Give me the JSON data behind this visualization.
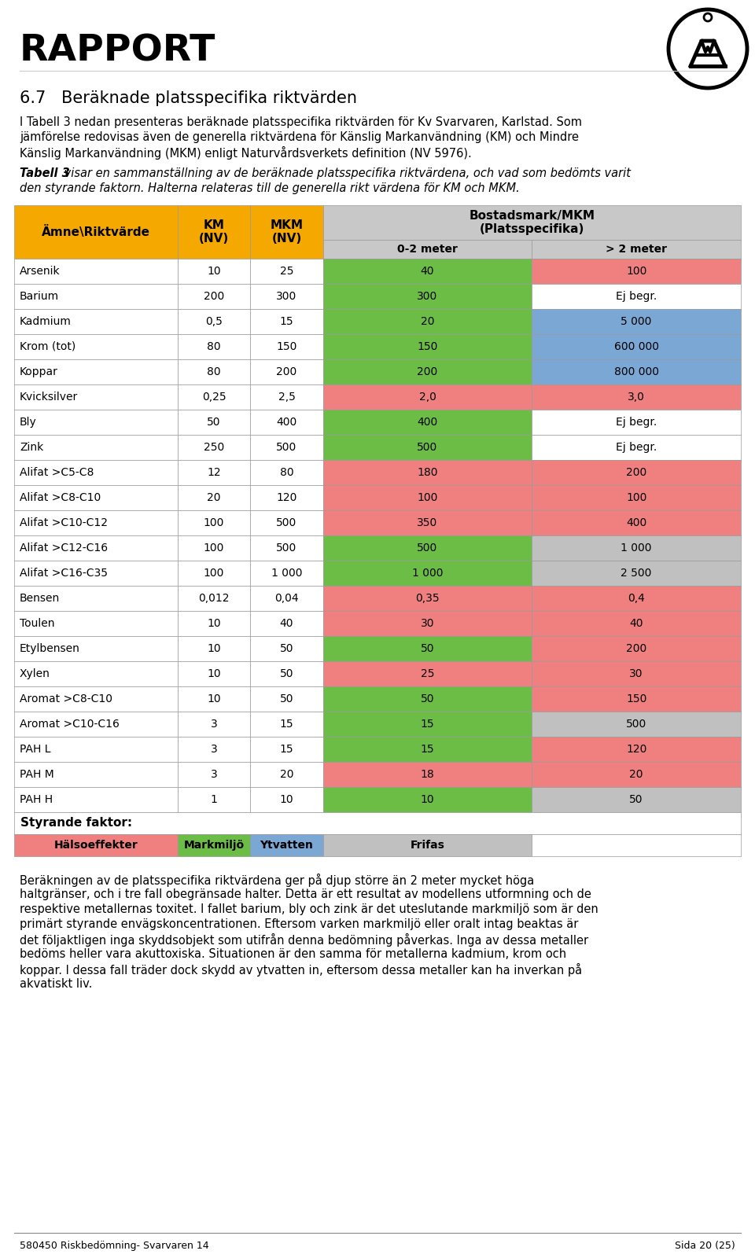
{
  "title": "RAPPORT",
  "section_title": "6.7   Beräknade platsspecifika riktvärden",
  "intro_lines": [
    "I Tabell 3 nedan presenteras beräknade platsspecifika riktvärden för Kv Svarvaren, Karlstad. Som",
    "jämförelse redovisas även de generella riktvärdena för Känslig Markanvändning (KM) och Mindre",
    "Känslig Markanvändning (MKM) enligt Naturvårdsverkets definition (NV 5976)."
  ],
  "caption_bold": "Tabell 3",
  "caption_lines": [
    " visar en sammanställning av de beräknade platsspecifika riktvärdena, och vad som bedömts varit",
    "den styrande faktorn. Halterna relateras till de generella rikt värdena för KM och MKM."
  ],
  "rows": [
    {
      "name": "Arsenik",
      "km": "10",
      "mkm": "25",
      "v02": "40",
      "v2": "100",
      "c02": "green",
      "c2": "red"
    },
    {
      "name": "Barium",
      "km": "200",
      "mkm": "300",
      "v02": "300",
      "v2": "Ej begr.",
      "c02": "green",
      "c2": "white"
    },
    {
      "name": "Kadmium",
      "km": "0,5",
      "mkm": "15",
      "v02": "20",
      "v2": "5 000",
      "c02": "green",
      "c2": "blue"
    },
    {
      "name": "Krom (tot)",
      "km": "80",
      "mkm": "150",
      "v02": "150",
      "v2": "600 000",
      "c02": "green",
      "c2": "blue"
    },
    {
      "name": "Koppar",
      "km": "80",
      "mkm": "200",
      "v02": "200",
      "v2": "800 000",
      "c02": "green",
      "c2": "blue"
    },
    {
      "name": "Kvicksilver",
      "km": "0,25",
      "mkm": "2,5",
      "v02": "2,0",
      "v2": "3,0",
      "c02": "red",
      "c2": "red"
    },
    {
      "name": "Bly",
      "km": "50",
      "mkm": "400",
      "v02": "400",
      "v2": "Ej begr.",
      "c02": "green",
      "c2": "white"
    },
    {
      "name": "Zink",
      "km": "250",
      "mkm": "500",
      "v02": "500",
      "v2": "Ej begr.",
      "c02": "green",
      "c2": "white"
    },
    {
      "name": "Alifat >C5-C8",
      "km": "12",
      "mkm": "80",
      "v02": "180",
      "v2": "200",
      "c02": "red",
      "c2": "red"
    },
    {
      "name": "Alifat >C8-C10",
      "km": "20",
      "mkm": "120",
      "v02": "100",
      "v2": "100",
      "c02": "red",
      "c2": "red"
    },
    {
      "name": "Alifat >C10-C12",
      "km": "100",
      "mkm": "500",
      "v02": "350",
      "v2": "400",
      "c02": "red",
      "c2": "red"
    },
    {
      "name": "Alifat >C12-C16",
      "km": "100",
      "mkm": "500",
      "v02": "500",
      "v2": "1 000",
      "c02": "green",
      "c2": "grey"
    },
    {
      "name": "Alifat >C16-C35",
      "km": "100",
      "mkm": "1 000",
      "v02": "1 000",
      "v2": "2 500",
      "c02": "green",
      "c2": "grey"
    },
    {
      "name": "Bensen",
      "km": "0,012",
      "mkm": "0,04",
      "v02": "0,35",
      "v2": "0,4",
      "c02": "red",
      "c2": "red"
    },
    {
      "name": "Toulen",
      "km": "10",
      "mkm": "40",
      "v02": "30",
      "v2": "40",
      "c02": "red",
      "c2": "red"
    },
    {
      "name": "Etylbensen",
      "km": "10",
      "mkm": "50",
      "v02": "50",
      "v2": "200",
      "c02": "green",
      "c2": "red"
    },
    {
      "name": "Xylen",
      "km": "10",
      "mkm": "50",
      "v02": "25",
      "v2": "30",
      "c02": "red",
      "c2": "red"
    },
    {
      "name": "Aromat >C8-C10",
      "km": "10",
      "mkm": "50",
      "v02": "50",
      "v2": "150",
      "c02": "green",
      "c2": "red"
    },
    {
      "name": "Aromat >C10-C16",
      "km": "3",
      "mkm": "15",
      "v02": "15",
      "v2": "500",
      "c02": "green",
      "c2": "grey"
    },
    {
      "name": "PAH L",
      "km": "3",
      "mkm": "15",
      "v02": "15",
      "v2": "120",
      "c02": "green",
      "c2": "red"
    },
    {
      "name": "PAH M",
      "km": "3",
      "mkm": "20",
      "v02": "18",
      "v2": "20",
      "c02": "red",
      "c2": "red"
    },
    {
      "name": "PAH H",
      "km": "1",
      "mkm": "10",
      "v02": "10",
      "v2": "50",
      "c02": "green",
      "c2": "grey"
    }
  ],
  "styrande_label": "Styrande faktor:",
  "faktor_labels": [
    "Hälsoeffekter",
    "Markmiljö",
    "Ytvatten",
    "Frifas"
  ],
  "faktor_colors": [
    "#F08080",
    "#6BBD45",
    "#7BA7D4",
    "#C0C0C0"
  ],
  "footer_lines": [
    "Beräkningen av de platsspecifika riktvärdena ger på djup större än 2 meter mycket höga",
    "haltgränser, och i tre fall obegränsade halter. Detta är ett resultat av modellens utformning och de",
    "respektive metallernas toxitet. I fallet barium, bly och zink är det uteslutande markmiljö som är den",
    "primärt styrande envägskoncentrationen. Eftersom varken markmiljö eller oralt intag beaktas är",
    "det följaktligen inga skyddsobjekt som utifrån denna bedömning påverkas. Inga av dessa metaller",
    "bedöms heller vara akuttoxiska. Situationen är den samma för metallerna kadmium, krom och",
    "koppar. I dessa fall träder dock skydd av ytvatten in, eftersom dessa metaller kan ha inverkan på",
    "akvatiskt liv."
  ],
  "footer_page": "580450 Riskbedömning- Svarvaren 14",
  "footer_right": "Sida 20 (25)",
  "gold": "#F4A800",
  "silver": "#C8C8C8",
  "green": "#6BBD45",
  "red": "#F08080",
  "blue": "#7BA7D4",
  "grey": "#C0C0C0",
  "white": "#FFFFFF",
  "border_color": "#999999"
}
